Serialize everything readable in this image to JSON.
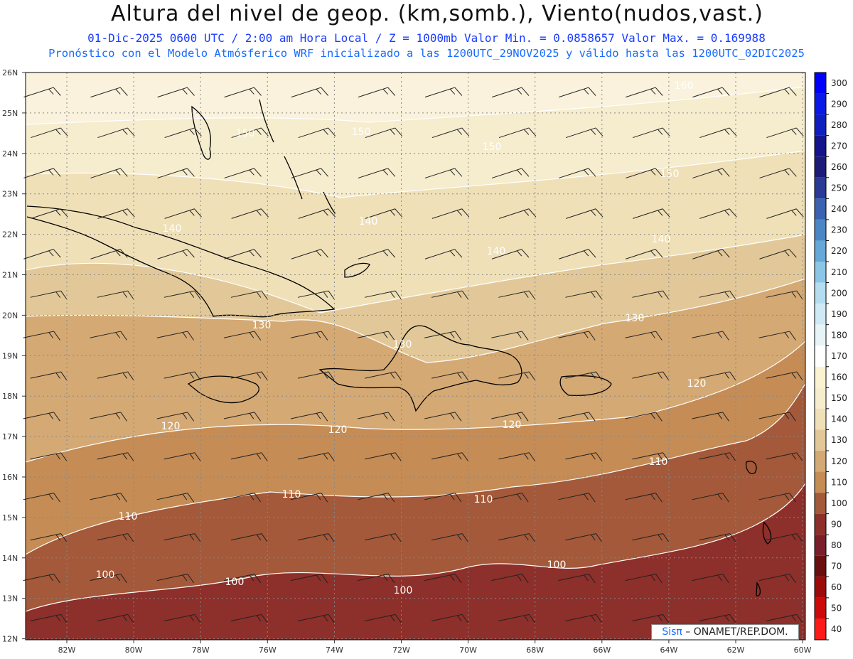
{
  "header": {
    "title": "Altura del nivel de geop. (km,somb.), Viento(nudos,vast.)",
    "line1": "01-Dic-2025  0600 UTC / 2:00 am Hora Local / Z = 1000mb  Valor Min. = 0.0858657  Valor Max. = 0.169988",
    "line2": "Pronóstico con el Modelo Atmósferico WRF inicializado a las 1200UTC_29NOV2025 y válido hasta las  1200UTC_02DIC2025"
  },
  "map": {
    "lat_labels": [
      "26N",
      "25N",
      "24N",
      "23N",
      "22N",
      "21N",
      "20N",
      "19N",
      "18N",
      "17N",
      "16N",
      "15N",
      "14N",
      "13N",
      "12N"
    ],
    "lon_labels": [
      "82W",
      "80W",
      "78W",
      "76W",
      "74W",
      "72W",
      "70W",
      "68W",
      "66W",
      "64W",
      "62W",
      "60W"
    ],
    "contour_labels": [
      "160",
      "150",
      "150",
      "150",
      "150",
      "140",
      "140",
      "140",
      "140",
      "130",
      "130",
      "130",
      "120",
      "120",
      "120",
      "120",
      "110",
      "110",
      "110",
      "110",
      "100",
      "100",
      "100",
      "100"
    ],
    "colors": {
      "c160": "#faf2dc",
      "c150": "#f6ecce",
      "c140": "#efe0b8",
      "c130": "#e2c898",
      "c120": "#d4a974",
      "c110": "#c58c55",
      "c100": "#a3593a",
      "c90": "#8d2f2a"
    }
  },
  "colorbar": {
    "labels": [
      "300",
      "290",
      "280",
      "270",
      "260",
      "250",
      "240",
      "230",
      "220",
      "210",
      "200",
      "190",
      "180",
      "170",
      "160",
      "150",
      "140",
      "130",
      "120",
      "110",
      "100",
      "90",
      "80",
      "70",
      "60",
      "50",
      "40"
    ],
    "colors": [
      "#0000ff",
      "#0a1ae6",
      "#0f1fbf",
      "#14148c",
      "#1c1c78",
      "#2a3a96",
      "#3a62b0",
      "#4a86c6",
      "#66a8d8",
      "#8cc6e6",
      "#b4def0",
      "#cfeaf4",
      "#e6f4f8",
      "#ffffff",
      "#faf2d0",
      "#f6ecce",
      "#efe0b8",
      "#e2c898",
      "#d4a974",
      "#c58c55",
      "#a3593a",
      "#8d2f2a",
      "#7a1f2a",
      "#6a0f0f",
      "#9c0a0a",
      "#cc0a0a",
      "#ff1a1a"
    ]
  },
  "credit": {
    "brand": "Sisπ",
    "text": " – ONAMET/REP.DOM."
  }
}
